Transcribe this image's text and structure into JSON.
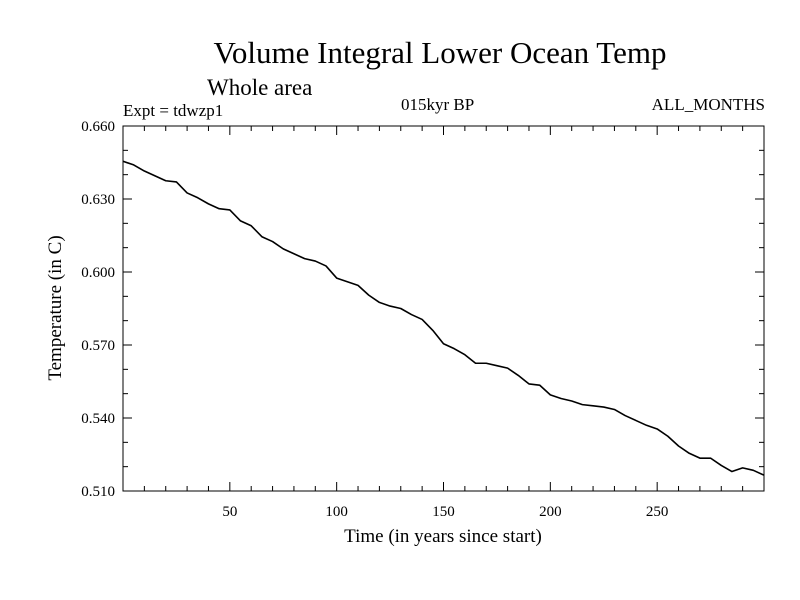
{
  "header": {
    "title": "Volume Integral Lower Ocean Temp",
    "subtitle": "Whole area",
    "experiment": "Expt = tdwzp1",
    "period": "015kyr BP",
    "months": "ALL_MONTHS"
  },
  "chart_data": {
    "type": "line",
    "title": "Volume Integral Lower Ocean Temp",
    "xlabel": "Time (in years since start)",
    "ylabel": "Temperature (in C)",
    "xlim": [
      0,
      300
    ],
    "ylim": [
      0.51,
      0.66
    ],
    "xticks": [
      50,
      100,
      150,
      200,
      250
    ],
    "yticks": [
      0.51,
      0.54,
      0.57,
      0.6,
      0.63,
      0.66
    ],
    "ytick_labels": [
      "0.510",
      "0.540",
      "0.570",
      "0.600",
      "0.630",
      "0.660"
    ],
    "grid": false,
    "series": [
      {
        "name": "Temperature",
        "x": [
          0,
          5,
          10,
          15,
          20,
          25,
          30,
          35,
          40,
          45,
          50,
          55,
          60,
          65,
          70,
          75,
          80,
          85,
          90,
          95,
          100,
          105,
          110,
          115,
          120,
          125,
          130,
          135,
          140,
          145,
          150,
          155,
          160,
          165,
          170,
          175,
          180,
          185,
          190,
          195,
          200,
          205,
          210,
          215,
          220,
          225,
          230,
          235,
          240,
          245,
          250,
          255,
          260,
          265,
          270,
          275,
          280,
          285,
          290,
          295,
          300
        ],
        "values": [
          0.6455,
          0.644,
          0.6415,
          0.6395,
          0.6375,
          0.637,
          0.6325,
          0.6305,
          0.628,
          0.626,
          0.6255,
          0.621,
          0.619,
          0.6145,
          0.6125,
          0.6095,
          0.6075,
          0.6055,
          0.6045,
          0.6025,
          0.5975,
          0.596,
          0.5945,
          0.5905,
          0.5875,
          0.586,
          0.585,
          0.5825,
          0.5805,
          0.576,
          0.5705,
          0.5685,
          0.566,
          0.5625,
          0.5625,
          0.5615,
          0.5605,
          0.5575,
          0.554,
          0.5535,
          0.5495,
          0.548,
          0.547,
          0.5455,
          0.545,
          0.5445,
          0.5435,
          0.541,
          0.539,
          0.537,
          0.5355,
          0.5325,
          0.5285,
          0.5255,
          0.5235,
          0.5235,
          0.5205,
          0.518,
          0.5195,
          0.5185,
          0.5165
        ]
      }
    ]
  }
}
